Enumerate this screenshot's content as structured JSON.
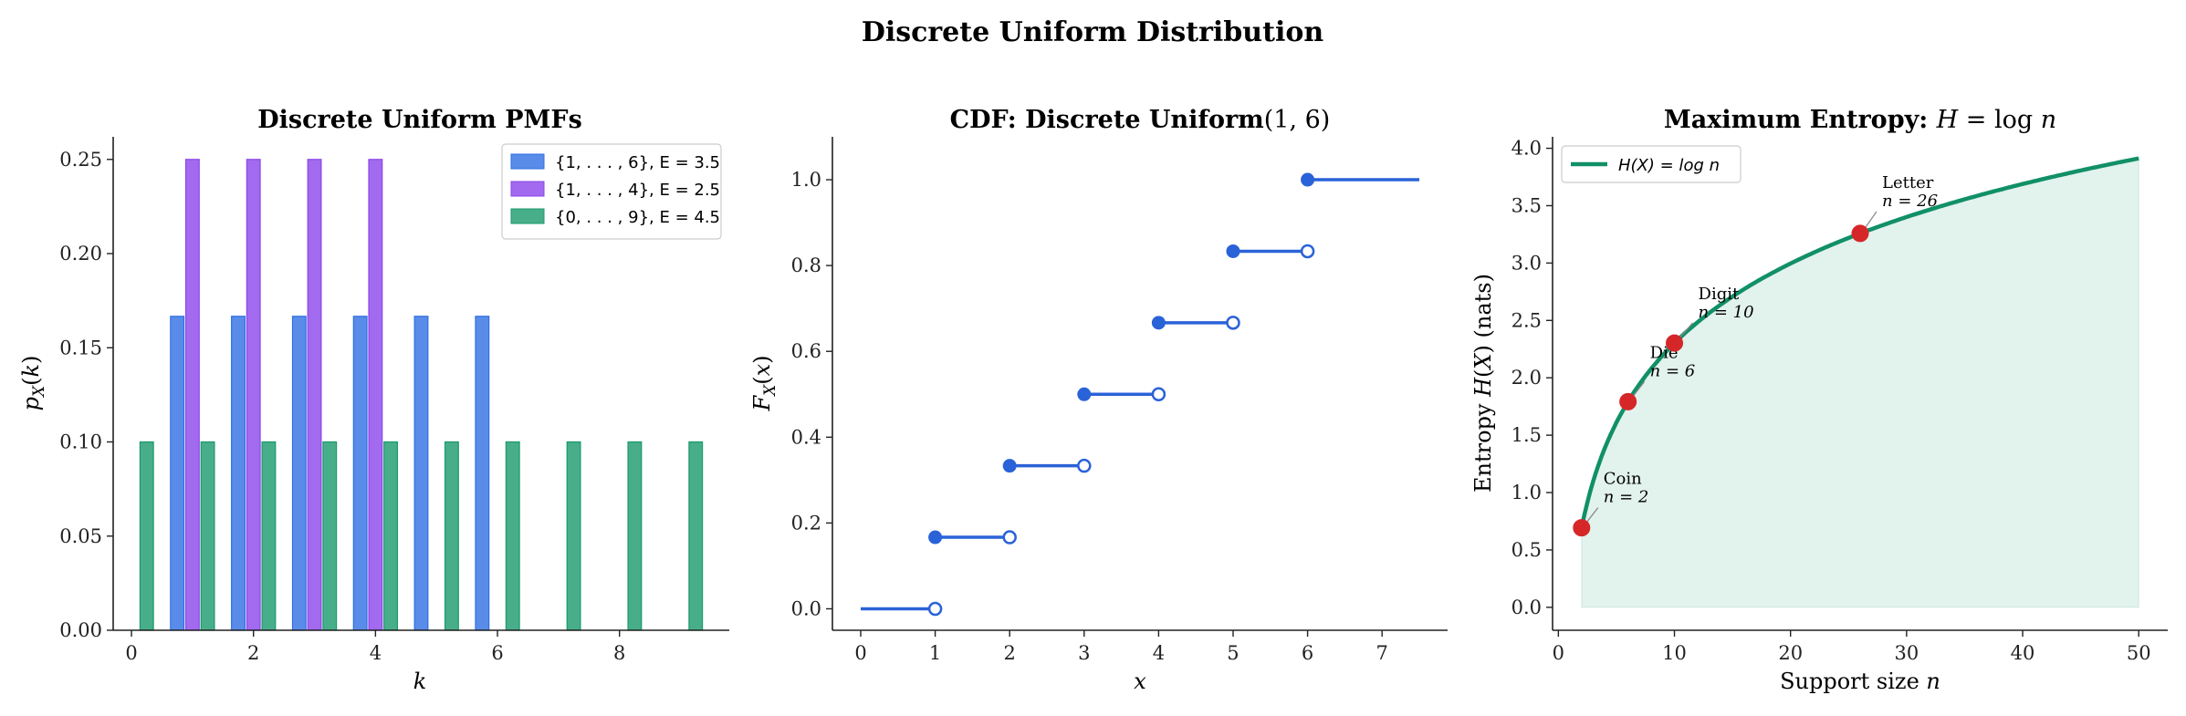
{
  "title": "Discrete Uniform Distribution",
  "colors": {
    "blue": "#2f6fe3",
    "purple": "#8b45ea",
    "green": "#1a9a6c",
    "step": "#2a62d8",
    "entropy": "#119068",
    "red": "#d62728"
  },
  "panels": [
    {
      "title": "Discrete Uniform PMFs"
    },
    {
      "title_text": "CDF: Discrete Uniform",
      "title_math": "(1, 6)"
    },
    {
      "title_text": "Maximum Entropy: ",
      "title_math": "H = log n"
    }
  ],
  "chart_data": [
    {
      "type": "bar",
      "title": "Discrete Uniform PMFs",
      "xlabel": "k",
      "ylabel": "p_X(k)",
      "xlim": [
        -0.3,
        9.8
      ],
      "ylim": [
        0,
        0.262
      ],
      "xticks": [
        0,
        2,
        4,
        6,
        8
      ],
      "yticks": [
        0.0,
        0.05,
        0.1,
        0.15,
        0.2,
        0.25
      ],
      "legend_position": "top-right",
      "series": [
        {
          "name": "{1, . . . , 6}, E = 3.5",
          "color": "#2f6fe3",
          "k": [
            1,
            2,
            3,
            4,
            5,
            6
          ],
          "values": [
            0.1667,
            0.1667,
            0.1667,
            0.1667,
            0.1667,
            0.1667
          ]
        },
        {
          "name": "{1, . . . , 4}, E = 2.5",
          "color": "#8b45ea",
          "k": [
            1,
            2,
            3,
            4
          ],
          "values": [
            0.25,
            0.25,
            0.25,
            0.25
          ]
        },
        {
          "name": "{0, . . . , 9}, E = 4.5",
          "color": "#1a9a6c",
          "k": [
            0,
            1,
            2,
            3,
            4,
            5,
            6,
            7,
            8,
            9
          ],
          "values": [
            0.1,
            0.1,
            0.1,
            0.1,
            0.1,
            0.1,
            0.1,
            0.1,
            0.1,
            0.1
          ]
        }
      ]
    },
    {
      "type": "line",
      "title": "CDF: Discrete Uniform(1, 6)",
      "xlabel": "x",
      "ylabel": "F_X(x)",
      "xlim": [
        -0.38,
        7.88
      ],
      "ylim": [
        -0.05,
        1.1
      ],
      "xticks": [
        0,
        1,
        2,
        3,
        4,
        5,
        6,
        7
      ],
      "yticks": [
        0.0,
        0.2,
        0.4,
        0.6,
        0.8,
        1.0
      ],
      "steps": [
        {
          "x0": 0,
          "x1": 1,
          "y": 0.0
        },
        {
          "x0": 1,
          "x1": 2,
          "y": 0.1667
        },
        {
          "x0": 2,
          "x1": 3,
          "y": 0.3333
        },
        {
          "x0": 3,
          "x1": 4,
          "y": 0.5
        },
        {
          "x0": 4,
          "x1": 5,
          "y": 0.6667
        },
        {
          "x0": 5,
          "x1": 6,
          "y": 0.8333
        },
        {
          "x0": 6,
          "x1": 7.5,
          "y": 1.0
        }
      ]
    },
    {
      "type": "area",
      "title": "Maximum Entropy: H = log n",
      "xlabel": "Support size n",
      "ylabel": "Entropy H(X) (nats)",
      "xlim": [
        -0.5,
        52.5
      ],
      "ylim": [
        -0.2,
        4.1
      ],
      "xticks": [
        0,
        10,
        20,
        30,
        40,
        50
      ],
      "yticks": [
        0.0,
        0.5,
        1.0,
        1.5,
        2.0,
        2.5,
        3.0,
        3.5,
        4.0
      ],
      "legend": "H(X) = log n",
      "legend_position": "top-left",
      "curve": {
        "function": "log",
        "n_min": 2,
        "n_max": 50
      },
      "points": [
        {
          "name": "Coin",
          "n": 2,
          "label": "n = 2",
          "H": 0.693
        },
        {
          "name": "Die",
          "n": 6,
          "label": "n = 6",
          "H": 1.792
        },
        {
          "name": "Digit",
          "n": 10,
          "label": "n = 10",
          "H": 2.303
        },
        {
          "name": "Letter",
          "n": 26,
          "label": "n = 26",
          "H": 3.258
        }
      ]
    }
  ]
}
